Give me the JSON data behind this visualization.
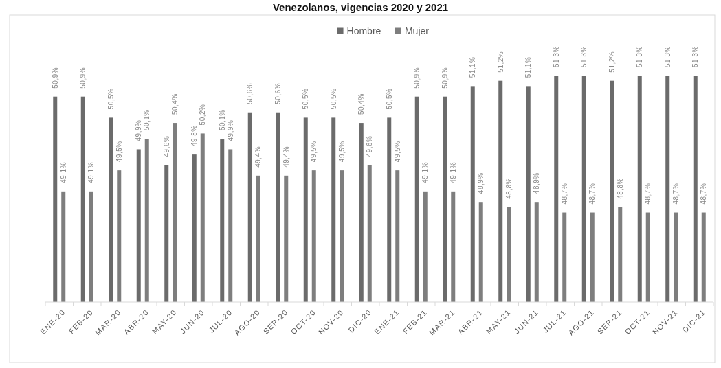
{
  "chart_data": {
    "type": "bar",
    "title": "Venezolanos, vigencias 2020 y 2021",
    "categories": [
      "ENE-20",
      "FEB-20",
      "MAR-20",
      "ABR-20",
      "MAY-20",
      "JUN-20",
      "JUL-20",
      "AGO-20",
      "SEP-20",
      "OCT-20",
      "NOV-20",
      "DIC-20",
      "ENE-21",
      "FEB-21",
      "MAR-21",
      "ABR-21",
      "MAY-21",
      "JUN-21",
      "JUL-21",
      "AGO-21",
      "SEP-21",
      "OCT-21",
      "NOV-21",
      "DIC-21"
    ],
    "series": [
      {
        "name": "Hombre",
        "color": "#6b6b6b",
        "values": [
          50.9,
          50.9,
          50.5,
          49.9,
          49.6,
          49.8,
          50.1,
          50.6,
          50.6,
          50.5,
          50.5,
          50.4,
          50.5,
          50.9,
          50.9,
          51.1,
          51.2,
          51.1,
          51.3,
          51.3,
          51.2,
          51.3,
          51.3,
          51.3
        ],
        "value_labels": [
          "50,9%",
          "50,9%",
          "50,5%",
          "49,9%",
          "49,6%",
          "49,8%",
          "50,1%",
          "50,6%",
          "50,6%",
          "50,5%",
          "50,5%",
          "50,4%",
          "50,5%",
          "50,9%",
          "50,9%",
          "51,1%",
          "51,2%",
          "51,1%",
          "51,3%",
          "51,3%",
          "51,2%",
          "51,3%",
          "51,3%",
          "51,3%"
        ]
      },
      {
        "name": "Mujer",
        "color": "#7e7e7e",
        "values": [
          49.1,
          49.1,
          49.5,
          50.1,
          50.4,
          50.2,
          49.9,
          49.4,
          49.4,
          49.5,
          49.5,
          49.6,
          49.5,
          49.1,
          49.1,
          48.9,
          48.8,
          48.9,
          48.7,
          48.7,
          48.8,
          48.7,
          48.7,
          48.7
        ],
        "value_labels": [
          "49,1%",
          "49,1%",
          "49,5%",
          "50,1%",
          "50,4%",
          "50,2%",
          "49,9%",
          "49,4%",
          "49,4%",
          "49,5%",
          "49,5%",
          "49,6%",
          "49,5%",
          "49,1%",
          "49,1%",
          "48,9%",
          "48,8%",
          "48,9%",
          "48,7%",
          "48,7%",
          "48,8%",
          "48,7%",
          "48,7%",
          "48,7%"
        ]
      }
    ],
    "ylim": [
      47,
      51.3
    ],
    "tick_labels": "x",
    "legend": "top"
  }
}
